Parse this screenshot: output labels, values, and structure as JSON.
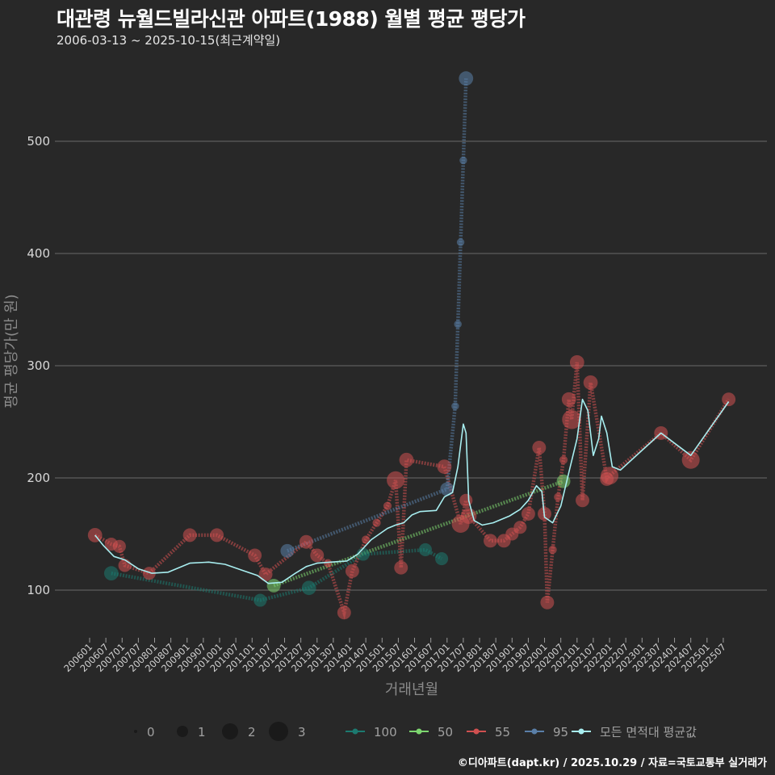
{
  "title": "대관령 뉴월드빌라신관 아파트(1988) 월별 평균 평당가",
  "subtitle": "2006-03-13 ~ 2025-10-15(최근계약일)",
  "credit": "©디아파트(dapt.kr) / 2025.10.29 / 자료=국토교통부 실거래가",
  "chart_data": {
    "type": "line",
    "xlabel": "거래년월",
    "ylabel": "평균 평당가(만 원)",
    "xlim": [
      "200601",
      "202510"
    ],
    "ylim": [
      55,
      570
    ],
    "yticks": [
      100,
      200,
      300,
      400,
      500
    ],
    "xticks": [
      "200601",
      "200607",
      "200701",
      "200707",
      "200801",
      "200807",
      "200901",
      "200907",
      "201001",
      "201007",
      "201101",
      "201107",
      "201201",
      "201207",
      "201301",
      "201307",
      "201401",
      "201407",
      "201501",
      "201507",
      "201601",
      "201607",
      "201701",
      "201707",
      "201801",
      "201807",
      "201901",
      "201907",
      "202001",
      "202007",
      "202101",
      "202107",
      "202201",
      "202207",
      "202301",
      "202307",
      "202401",
      "202407",
      "202501",
      "202507"
    ],
    "size_legend": {
      "values": [
        "0",
        "1",
        "2",
        "3"
      ]
    },
    "legend": [
      {
        "name": "100",
        "color": "#1c7a70"
      },
      {
        "name": "50",
        "color": "#7dd66f"
      },
      {
        "name": "55",
        "color": "#d05050"
      },
      {
        "name": "95",
        "color": "#5a7fa8"
      },
      {
        "name": "모든 면적대 평균값",
        "color": "#a8eef0"
      }
    ],
    "series": [
      {
        "name": "100",
        "color": "#1c7a70",
        "points": [
          {
            "x": "200609",
            "y": 115,
            "s": 1.4
          },
          {
            "x": "201104",
            "y": 91,
            "s": 1.2
          },
          {
            "x": "201210",
            "y": 102,
            "s": 1.4
          },
          {
            "x": "201406",
            "y": 132,
            "s": 1.2
          },
          {
            "x": "201605",
            "y": 136,
            "s": 1.2
          },
          {
            "x": "201611",
            "y": 128,
            "s": 1.2
          }
        ]
      },
      {
        "name": "50",
        "color": "#7dd66f",
        "points": [
          {
            "x": "201109",
            "y": 104,
            "s": 1.3
          },
          {
            "x": "202008",
            "y": 197,
            "s": 1.3
          }
        ]
      },
      {
        "name": "55",
        "color": "#d05050",
        "points": [
          {
            "x": "200603",
            "y": 149,
            "s": 1.4
          },
          {
            "x": "200609",
            "y": 141,
            "s": 1.2
          },
          {
            "x": "200612",
            "y": 139,
            "s": 1.2
          },
          {
            "x": "200702",
            "y": 122,
            "s": 1.2
          },
          {
            "x": "200711",
            "y": 115,
            "s": 1.2
          },
          {
            "x": "200902",
            "y": 149,
            "s": 1.3
          },
          {
            "x": "200912",
            "y": 149,
            "s": 1.3
          },
          {
            "x": "201102",
            "y": 131,
            "s": 1.3
          },
          {
            "x": "201106",
            "y": 114,
            "s": 1.3
          },
          {
            "x": "201209",
            "y": 143,
            "s": 1.3
          },
          {
            "x": "201301",
            "y": 131,
            "s": 1.3
          },
          {
            "x": "201305",
            "y": 124,
            "s": 0.5
          },
          {
            "x": "201311",
            "y": 80,
            "s": 1.3
          },
          {
            "x": "201402",
            "y": 117,
            "s": 1.3
          },
          {
            "x": "201407",
            "y": 145,
            "s": 0.5
          },
          {
            "x": "201411",
            "y": 160,
            "s": 0.5
          },
          {
            "x": "201503",
            "y": 175,
            "s": 0.5
          },
          {
            "x": "201506",
            "y": 198,
            "s": 1.9
          },
          {
            "x": "201508",
            "y": 120,
            "s": 1.3
          },
          {
            "x": "201510",
            "y": 216,
            "s": 1.4
          },
          {
            "x": "201612",
            "y": 210,
            "s": 1.4
          },
          {
            "x": "201706",
            "y": 159,
            "s": 1.9
          },
          {
            "x": "201708",
            "y": 180,
            "s": 1.2
          },
          {
            "x": "201709",
            "y": 166,
            "s": 1.6
          },
          {
            "x": "201805",
            "y": 144,
            "s": 1.3
          },
          {
            "x": "201810",
            "y": 144,
            "s": 1.3
          },
          {
            "x": "201901",
            "y": 150,
            "s": 1.2
          },
          {
            "x": "201904",
            "y": 156,
            "s": 1.2
          },
          {
            "x": "201907",
            "y": 168,
            "s": 1.3
          },
          {
            "x": "201911",
            "y": 227,
            "s": 1.3
          },
          {
            "x": "202001",
            "y": 168,
            "s": 1.3
          },
          {
            "x": "202002",
            "y": 89,
            "s": 1.3
          },
          {
            "x": "202004",
            "y": 136,
            "s": 0.5
          },
          {
            "x": "202006",
            "y": 183,
            "s": 0.5
          },
          {
            "x": "202008",
            "y": 216,
            "s": 0.5
          },
          {
            "x": "202010",
            "y": 270,
            "s": 1.4
          },
          {
            "x": "202011",
            "y": 252,
            "s": 2.1
          },
          {
            "x": "202101",
            "y": 303,
            "s": 1.4
          },
          {
            "x": "202103",
            "y": 180,
            "s": 1.3
          },
          {
            "x": "202106",
            "y": 285,
            "s": 1.4
          },
          {
            "x": "202112",
            "y": 199,
            "s": 1.3
          },
          {
            "x": "202201",
            "y": 202,
            "s": 1.9
          },
          {
            "x": "202308",
            "y": 240,
            "s": 1.3
          },
          {
            "x": "202407",
            "y": 216,
            "s": 1.9
          },
          {
            "x": "202509",
            "y": 270,
            "s": 1.3
          }
        ]
      },
      {
        "name": "95",
        "color": "#5a7fa8",
        "points": [
          {
            "x": "201202",
            "y": 135,
            "s": 1.3
          },
          {
            "x": "201701",
            "y": 190,
            "s": 1.3
          },
          {
            "x": "201704",
            "y": 264,
            "s": 0.4
          },
          {
            "x": "201705",
            "y": 337,
            "s": 0.4
          },
          {
            "x": "201706",
            "y": 410,
            "s": 0.4
          },
          {
            "x": "201707",
            "y": 483,
            "s": 0.4
          },
          {
            "x": "201708",
            "y": 556,
            "s": 1.4
          }
        ]
      },
      {
        "name": "모든 면적대 평균값",
        "color": "#a8eef0",
        "line": [
          [
            "200603",
            149
          ],
          [
            "200606",
            140
          ],
          [
            "200610",
            130
          ],
          [
            "200702",
            127
          ],
          [
            "200707",
            119
          ],
          [
            "200712",
            115
          ],
          [
            "200806",
            116
          ],
          [
            "200902",
            124
          ],
          [
            "200909",
            125
          ],
          [
            "201003",
            123
          ],
          [
            "201009",
            118
          ],
          [
            "201103",
            113
          ],
          [
            "201107",
            106
          ],
          [
            "201112",
            107
          ],
          [
            "201205",
            115
          ],
          [
            "201209",
            121
          ],
          [
            "201301",
            124
          ],
          [
            "201306",
            125
          ],
          [
            "201312",
            126
          ],
          [
            "201404",
            132
          ],
          [
            "201409",
            145
          ],
          [
            "201503",
            155
          ],
          [
            "201506",
            158
          ],
          [
            "201509",
            160
          ],
          [
            "201512",
            167
          ],
          [
            "201603",
            170
          ],
          [
            "201609",
            171
          ],
          [
            "201612",
            183
          ],
          [
            "201703",
            187
          ],
          [
            "201705",
            210
          ],
          [
            "201707",
            248
          ],
          [
            "201708",
            240
          ],
          [
            "201709",
            180
          ],
          [
            "201711",
            162
          ],
          [
            "201802",
            158
          ],
          [
            "201806",
            160
          ],
          [
            "201812",
            166
          ],
          [
            "201904",
            172
          ],
          [
            "201907",
            180
          ],
          [
            "201910",
            193
          ],
          [
            "201912",
            188
          ],
          [
            "202001",
            165
          ],
          [
            "202004",
            160
          ],
          [
            "202007",
            175
          ],
          [
            "202010",
            205
          ],
          [
            "202101",
            235
          ],
          [
            "202103",
            270
          ],
          [
            "202105",
            260
          ],
          [
            "202107",
            220
          ],
          [
            "202109",
            235
          ],
          [
            "202110",
            255
          ],
          [
            "202112",
            240
          ],
          [
            "202202",
            210
          ],
          [
            "202205",
            207
          ],
          [
            "202308",
            240
          ],
          [
            "202407",
            220
          ],
          [
            "202509",
            268
          ]
        ]
      }
    ]
  }
}
